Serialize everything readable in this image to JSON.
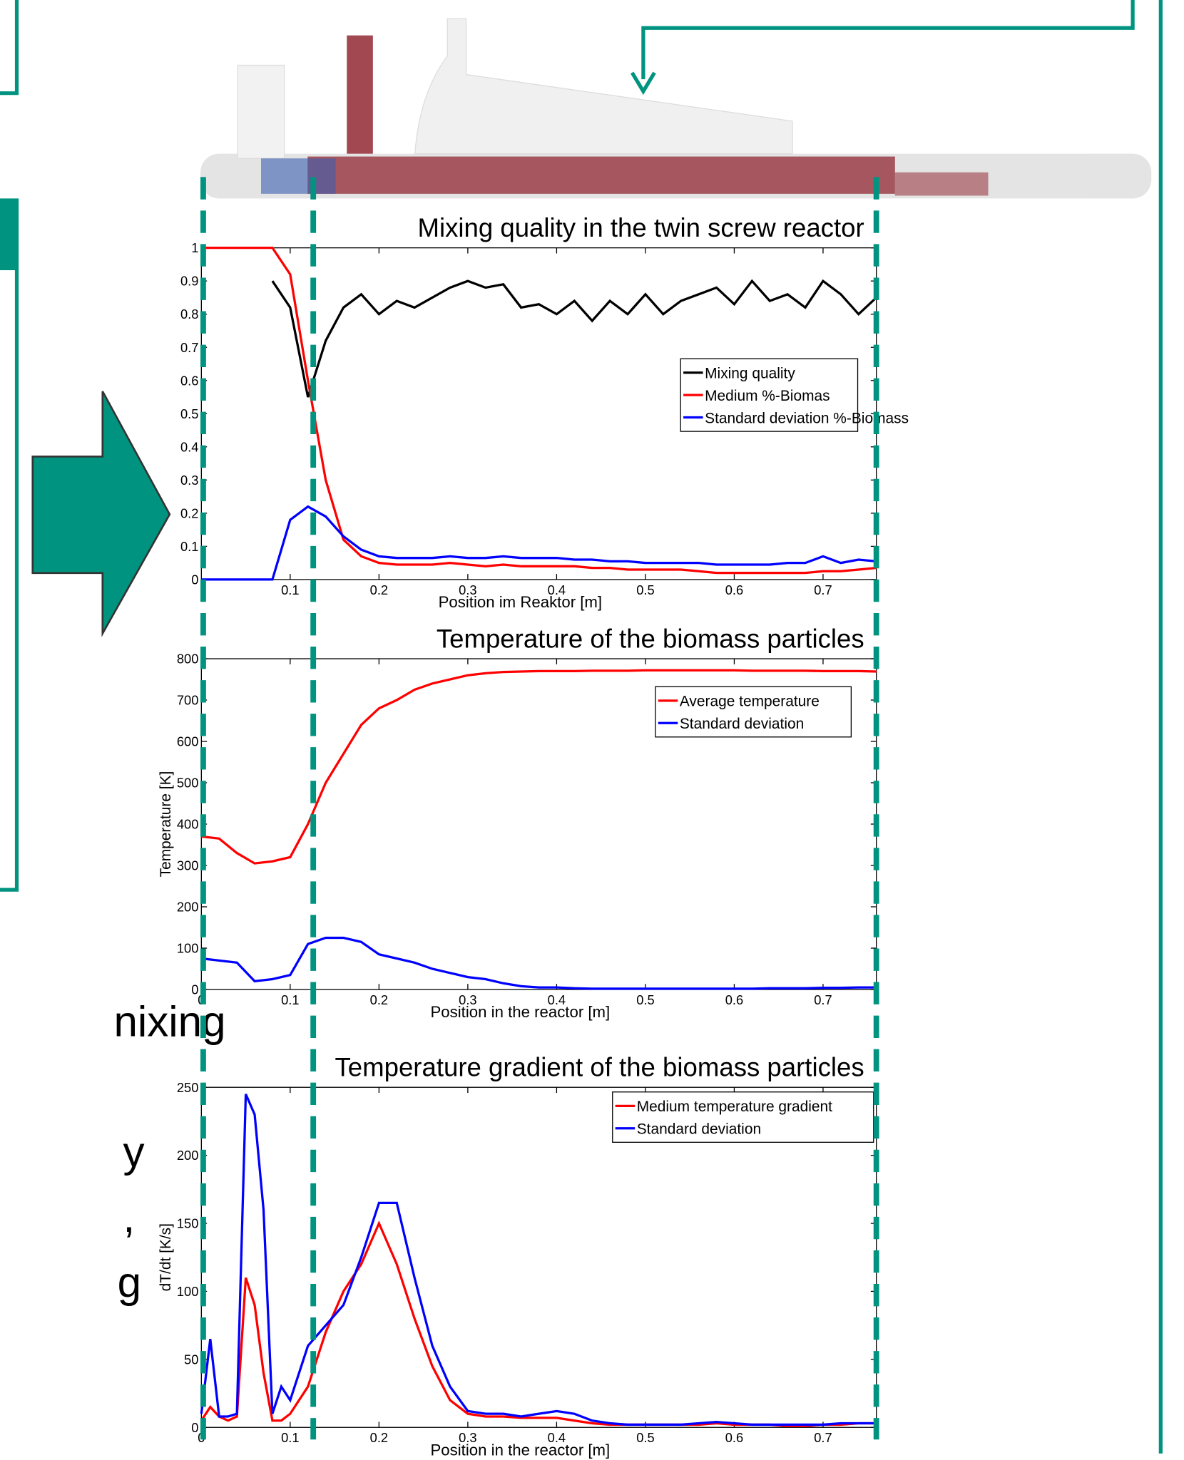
{
  "slide_fragments": [
    "nixing",
    "y",
    ",",
    "g"
  ],
  "chart_data": [
    {
      "type": "line",
      "title": "Mixing quality in the twin screw reactor",
      "xlabel": "Position im Reaktor [m]",
      "x": [
        0,
        0.02,
        0.04,
        0.06,
        0.08,
        0.1,
        0.12,
        0.14,
        0.16,
        0.18,
        0.2,
        0.22,
        0.24,
        0.26,
        0.28,
        0.3,
        0.32,
        0.34,
        0.36,
        0.38,
        0.4,
        0.42,
        0.44,
        0.46,
        0.48,
        0.5,
        0.52,
        0.54,
        0.56,
        0.58,
        0.6,
        0.62,
        0.64,
        0.66,
        0.68,
        0.7,
        0.72,
        0.74,
        0.76
      ],
      "series": [
        {
          "name": "Mixing quality",
          "color": "#000000",
          "values": [
            null,
            null,
            null,
            null,
            0.9,
            0.82,
            0.55,
            0.72,
            0.82,
            0.86,
            0.8,
            0.84,
            0.82,
            0.85,
            0.88,
            0.9,
            0.88,
            0.89,
            0.82,
            0.83,
            0.8,
            0.84,
            0.78,
            0.84,
            0.8,
            0.86,
            0.8,
            0.84,
            0.86,
            0.88,
            0.83,
            0.9,
            0.84,
            0.86,
            0.82,
            0.9,
            0.86,
            0.8,
            0.85
          ]
        },
        {
          "name": "Medium %-Biomas",
          "color": "#ff0000",
          "values": [
            1,
            1,
            1,
            1,
            1,
            0.92,
            0.6,
            0.3,
            0.12,
            0.07,
            0.05,
            0.045,
            0.045,
            0.045,
            0.05,
            0.045,
            0.04,
            0.045,
            0.04,
            0.04,
            0.04,
            0.04,
            0.035,
            0.035,
            0.03,
            0.03,
            0.03,
            0.03,
            0.025,
            0.02,
            0.02,
            0.02,
            0.02,
            0.02,
            0.02,
            0.025,
            0.025,
            0.03,
            0.035
          ]
        },
        {
          "name": "Standard deviation %-Biomass",
          "color": "#0000ff",
          "values": [
            0,
            0,
            0,
            0,
            0,
            0.18,
            0.22,
            0.19,
            0.13,
            0.09,
            0.07,
            0.065,
            0.065,
            0.065,
            0.07,
            0.065,
            0.065,
            0.07,
            0.065,
            0.065,
            0.065,
            0.06,
            0.06,
            0.055,
            0.055,
            0.05,
            0.05,
            0.05,
            0.05,
            0.045,
            0.045,
            0.045,
            0.045,
            0.05,
            0.05,
            0.07,
            0.05,
            0.06,
            0.055
          ]
        }
      ],
      "xlim": [
        0,
        0.76
      ],
      "xticks": [
        0.1,
        0.2,
        0.3,
        0.4,
        0.5,
        0.6,
        0.7
      ],
      "ylim": [
        0,
        1
      ],
      "yticks": [
        0,
        0.1,
        0.2,
        0.3,
        0.4,
        0.5,
        0.6,
        0.7,
        0.8,
        0.9,
        1
      ]
    },
    {
      "type": "line",
      "title": "Temperature of the biomass particles",
      "xlabel": "Position in the reactor [m]",
      "ylabel": "Temperature [K]",
      "x": [
        0,
        0.02,
        0.04,
        0.06,
        0.08,
        0.1,
        0.12,
        0.14,
        0.16,
        0.18,
        0.2,
        0.22,
        0.24,
        0.26,
        0.28,
        0.3,
        0.32,
        0.34,
        0.36,
        0.38,
        0.4,
        0.42,
        0.44,
        0.46,
        0.48,
        0.5,
        0.52,
        0.54,
        0.56,
        0.58,
        0.6,
        0.62,
        0.64,
        0.66,
        0.68,
        0.7,
        0.72,
        0.74,
        0.76
      ],
      "series": [
        {
          "name": "Average temperature",
          "color": "#ff0000",
          "values": [
            370,
            365,
            330,
            305,
            310,
            320,
            400,
            500,
            570,
            640,
            680,
            700,
            725,
            740,
            750,
            760,
            765,
            768,
            769,
            770,
            770,
            770,
            771,
            771,
            771,
            772,
            772,
            772,
            772,
            772,
            772,
            771,
            771,
            771,
            771,
            770,
            770,
            770,
            769
          ]
        },
        {
          "name": "Standard deviation",
          "color": "#0000ff",
          "values": [
            75,
            70,
            65,
            20,
            25,
            35,
            110,
            125,
            125,
            115,
            85,
            75,
            65,
            50,
            40,
            30,
            25,
            15,
            8,
            5,
            5,
            3,
            2,
            2,
            2,
            2,
            2,
            2,
            2,
            2,
            2,
            2,
            3,
            3,
            3,
            4,
            4,
            5,
            5
          ]
        }
      ],
      "xlim": [
        0,
        0.76
      ],
      "xticks": [
        0,
        0.1,
        0.2,
        0.3,
        0.4,
        0.5,
        0.6,
        0.7
      ],
      "ylim": [
        0,
        800
      ],
      "yticks": [
        0,
        100,
        200,
        300,
        400,
        500,
        600,
        700,
        800
      ]
    },
    {
      "type": "line",
      "title": "Temperature gradient of the biomass particles",
      "xlabel": "Position in the reactor [m]",
      "ylabel": "dT/dt [K/s]",
      "x": [
        0,
        0.01,
        0.02,
        0.03,
        0.04,
        0.05,
        0.06,
        0.07,
        0.08,
        0.09,
        0.1,
        0.12,
        0.14,
        0.16,
        0.18,
        0.2,
        0.22,
        0.24,
        0.26,
        0.28,
        0.3,
        0.32,
        0.34,
        0.36,
        0.38,
        0.4,
        0.42,
        0.44,
        0.46,
        0.48,
        0.5,
        0.52,
        0.54,
        0.56,
        0.58,
        0.6,
        0.62,
        0.64,
        0.66,
        0.68,
        0.7,
        0.72,
        0.74,
        0.76
      ],
      "series": [
        {
          "name": "Medium temperature gradient",
          "color": "#ff0000",
          "values": [
            5,
            15,
            8,
            5,
            8,
            110,
            90,
            40,
            5,
            5,
            10,
            30,
            70,
            100,
            120,
            150,
            120,
            80,
            45,
            20,
            10,
            8,
            8,
            7,
            7,
            7,
            5,
            3,
            2,
            2,
            2,
            2,
            2,
            2,
            3,
            2,
            2,
            2,
            1,
            1,
            2,
            2,
            3,
            3
          ]
        },
        {
          "name": "Standard deviation",
          "color": "#0000ff",
          "values": [
            10,
            65,
            8,
            8,
            10,
            245,
            230,
            160,
            10,
            30,
            20,
            60,
            75,
            90,
            125,
            165,
            165,
            110,
            60,
            30,
            12,
            10,
            10,
            8,
            10,
            12,
            10,
            5,
            3,
            2,
            2,
            2,
            2,
            3,
            4,
            3,
            2,
            2,
            2,
            2,
            2,
            3,
            3,
            3
          ]
        }
      ],
      "xlim": [
        0,
        0.76
      ],
      "xticks": [
        0,
        0.1,
        0.2,
        0.3,
        0.4,
        0.5,
        0.6,
        0.7
      ],
      "ylim": [
        0,
        250
      ],
      "yticks": [
        0,
        50,
        100,
        150,
        200,
        250
      ]
    }
  ]
}
